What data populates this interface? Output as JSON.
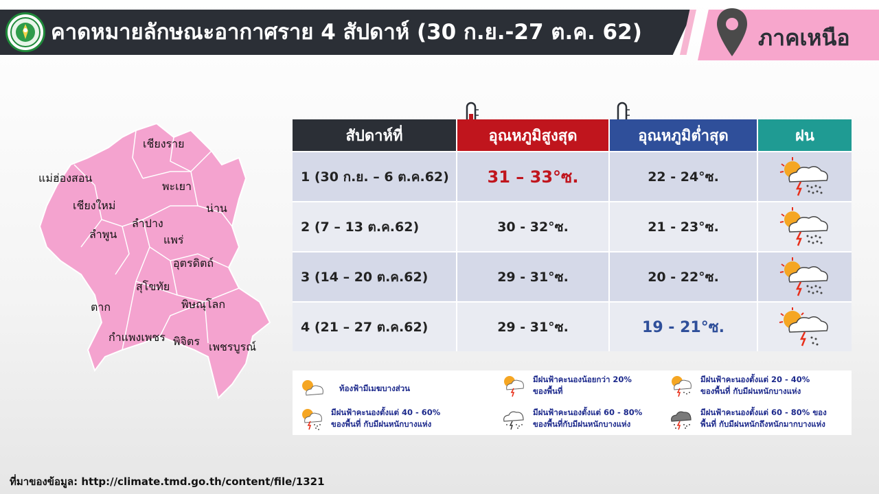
{
  "header": {
    "title": "คาดหมายลักษณะอากาศราย 4 สัปดาห์ (30 ก.ย.-27 ต.ค. 62)",
    "region": "ภาคเหนือ"
  },
  "map": {
    "provinces": [
      "เชียงราย",
      "แม่ฮ่องสอน",
      "พะเยา",
      "เชียงใหม่",
      "น่าน",
      "ลำปาง",
      "ลำพูน",
      "แพร่",
      "อุตรดิตถ์",
      "สุโขทัย",
      "พิษณุโลก",
      "ตาก",
      "กำแพงเพชร",
      "พิจิตร",
      "เพชรบูรณ์"
    ]
  },
  "table": {
    "headers": {
      "week": "สัปดาห์ที่",
      "max": "อุณหภูมิสูงสุด",
      "min": "อุณหภูมิต่ำสุด",
      "rain": "ฝน"
    },
    "rows": [
      {
        "week": "1 (30 ก.ย. – 6 ต.ค.62)",
        "max": "31 – 33°ซ.",
        "min": "22 - 24°ซ.",
        "rain_icon": "storm-cloud-heavy-rain-icon"
      },
      {
        "week": "2 (7 – 13 ต.ค.62)",
        "max": "30 - 32°ซ.",
        "min": "21 - 23°ซ.",
        "rain_icon": "storm-cloud-heavy-rain-icon"
      },
      {
        "week": "3 (14 – 20 ต.ค.62)",
        "max": "29 - 31°ซ.",
        "min": "20 - 22°ซ.",
        "rain_icon": "storm-cloud-heavy-rain-icon"
      },
      {
        "week": "4 (21 – 27 ต.ค.62)",
        "max": "29 - 31°ซ.",
        "min": "19 - 21°ซ.",
        "rain_icon": "storm-cloud-rain-icon"
      }
    ]
  },
  "legend": [
    {
      "text1": "ท้องฟ้ามีเมฆบางส่วน",
      "text2": "",
      "icon": "partly-cloudy-icon"
    },
    {
      "text1": "มีฝนฟ้าคะนองน้อยกว่า 20%",
      "text2": "ของพื้นที่",
      "icon": "thunderstorm-light-icon"
    },
    {
      "text1": "มีฝนฟ้าคะนองตั้งแต่ 20 - 40%",
      "text2": "ของพื้นที่ กับมีฝนหนักบางแห่ง",
      "icon": "thunderstorm-scattered-icon"
    },
    {
      "text1": "มีฝนฟ้าคะนองตั้งแต่ 40 - 60%",
      "text2": "ของพื้นที่ กับมีฝนหนักบางแห่ง",
      "icon": "thunderstorm-rain-icon"
    },
    {
      "text1": "มีฝนฟ้าคะนองตั้งแต่ 60 - 80%",
      "text2": "ของพื้นที่กับมีฝนหนักบางแห่ง",
      "icon": "thunderstorm-heavy-icon"
    },
    {
      "text1": "มีฝนฟ้าคะนองตั้งแต่ 60 - 80% ของ",
      "text2": "พื้นที่ กับมีฝนหนักถึงหนักมากบางแห่ง",
      "icon": "thunderstorm-very-heavy-icon"
    }
  ],
  "source": "ที่มาของข้อมูล: http://climate.tmd.go.th/content/file/1321",
  "colors": {
    "header_bg": "#2b2f36",
    "accent_pink": "#f7a6cc",
    "map_fill": "#f4a3cf",
    "max_red": "#c0151d",
    "min_blue": "#2f4f9a",
    "rain_teal": "#1f9b93"
  }
}
